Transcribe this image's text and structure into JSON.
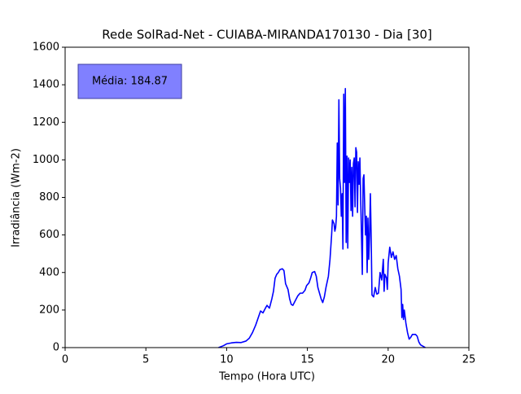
{
  "chart_data": {
    "type": "line",
    "title": "Rede SolRad-Net - CUIABA-MIRANDA170130 - Dia [30]",
    "x_label": "Tempo (Hora UTC)",
    "y_label": "Irradiância (Wm-2)",
    "annotation": "Média: 184.87",
    "xlim": [
      0,
      25
    ],
    "xticks": [
      0,
      5,
      10,
      15,
      20,
      25
    ],
    "ylim": [
      0,
      1600
    ],
    "yticks": [
      0,
      200,
      400,
      600,
      800,
      1000,
      1200,
      1400,
      1600
    ],
    "series": [
      {
        "color": "#0000ff",
        "x": [
          9.5,
          9.8,
          10.0,
          10.3,
          10.6,
          10.9,
          11.2,
          11.4,
          11.6,
          11.8,
          12.0,
          12.1,
          12.25,
          12.4,
          12.5,
          12.65,
          12.8,
          12.9,
          13.0,
          13.1,
          13.2,
          13.3,
          13.45,
          13.55,
          13.65,
          13.8,
          13.9,
          14.0,
          14.1,
          14.25,
          14.4,
          14.55,
          14.7,
          14.85,
          14.95,
          15.1,
          15.2,
          15.3,
          15.45,
          15.55,
          15.65,
          15.75,
          15.85,
          15.95,
          16.05,
          16.15,
          16.3,
          16.4,
          16.5,
          16.55,
          16.65,
          16.7,
          16.75,
          16.8,
          16.85,
          16.9,
          16.95,
          17.0,
          17.05,
          17.1,
          17.15,
          17.2,
          17.25,
          17.3,
          17.35,
          17.4,
          17.45,
          17.5,
          17.55,
          17.6,
          17.65,
          17.7,
          17.75,
          17.8,
          17.85,
          17.9,
          17.95,
          18.0,
          18.05,
          18.1,
          18.15,
          18.2,
          18.25,
          18.3,
          18.35,
          18.4,
          18.45,
          18.5,
          18.55,
          18.6,
          18.65,
          18.7,
          18.75,
          18.8,
          18.85,
          18.9,
          18.95,
          19.0,
          19.1,
          19.2,
          19.3,
          19.4,
          19.5,
          19.6,
          19.7,
          19.75,
          19.8,
          19.9,
          19.95,
          20.0,
          20.1,
          20.2,
          20.3,
          20.4,
          20.5,
          20.6,
          20.7,
          20.8,
          20.85,
          20.9,
          20.95,
          21.0,
          21.1,
          21.2,
          21.3,
          21.4,
          21.5,
          21.7,
          21.8,
          21.9,
          22.0,
          22.2,
          22.3
        ],
        "values": [
          0,
          10,
          20,
          25,
          28,
          27,
          35,
          50,
          80,
          120,
          170,
          195,
          185,
          210,
          225,
          210,
          260,
          300,
          370,
          390,
          400,
          415,
          420,
          410,
          340,
          310,
          260,
          230,
          225,
          250,
          275,
          290,
          290,
          305,
          330,
          345,
          370,
          400,
          405,
          380,
          320,
          290,
          260,
          240,
          270,
          320,
          380,
          470,
          600,
          680,
          660,
          620,
          640,
          700,
          1090,
          760,
          1320,
          900,
          850,
          700,
          820,
          525,
          1350,
          880,
          1380,
          560,
          1020,
          530,
          1010,
          880,
          1000,
          730,
          960,
          700,
          980,
          1010,
          750,
          1065,
          1040,
          720,
          990,
          870,
          1010,
          790,
          600,
          390,
          900,
          920,
          750,
          600,
          700,
          400,
          690,
          470,
          600,
          820,
          580,
          280,
          270,
          320,
          285,
          290,
          400,
          360,
          470,
          300,
          390,
          370,
          310,
          450,
          535,
          480,
          510,
          470,
          490,
          420,
          380,
          310,
          160,
          230,
          150,
          200,
          130,
          80,
          45,
          55,
          70,
          70,
          60,
          30,
          15,
          5,
          0
        ]
      }
    ]
  }
}
